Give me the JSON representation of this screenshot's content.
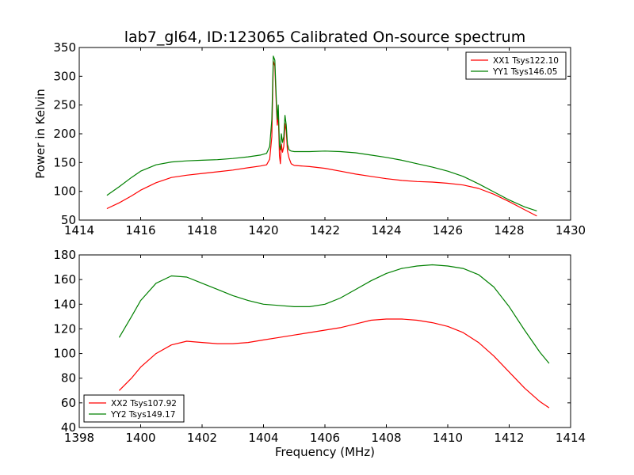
{
  "chart_data": [
    {
      "type": "line",
      "title": "lab7_gl64, ID:123065 Calibrated On-source spectrum",
      "xlabel": "",
      "ylabel": "Power in Kelvin",
      "xlim": [
        1414,
        1430
      ],
      "ylim": [
        50,
        350
      ],
      "xticks": [
        1414,
        1416,
        1418,
        1420,
        1422,
        1424,
        1426,
        1428,
        1430
      ],
      "xtick_labels": [
        "1414",
        "1416",
        "1418",
        "1420",
        "1422",
        "1424",
        "1426",
        "1428",
        "1430"
      ],
      "yticks": [
        50,
        100,
        150,
        200,
        250,
        300,
        350
      ],
      "ytick_labels": [
        "50",
        "100",
        "150",
        "200",
        "250",
        "300",
        "350"
      ],
      "grid": false,
      "legend_position": "top-right",
      "series": [
        {
          "name": "XX1 Tsys122.10",
          "color": "#ff0000",
          "x": [
            1414.9,
            1415.3,
            1415.7,
            1416.0,
            1416.5,
            1417.0,
            1417.5,
            1418.0,
            1418.5,
            1419.0,
            1419.5,
            1419.9,
            1420.1,
            1420.2,
            1420.27,
            1420.32,
            1420.37,
            1420.42,
            1420.45,
            1420.48,
            1420.52,
            1420.55,
            1420.58,
            1420.62,
            1420.66,
            1420.7,
            1420.74,
            1420.78,
            1420.83,
            1420.9,
            1421.0,
            1421.5,
            1422.0,
            1422.5,
            1423.0,
            1423.5,
            1424.0,
            1424.5,
            1425.0,
            1425.5,
            1426.0,
            1426.5,
            1427.0,
            1427.5,
            1428.0,
            1428.5,
            1428.9
          ],
          "y": [
            70,
            80,
            92,
            102,
            115,
            124,
            128,
            131,
            134,
            137,
            141,
            144,
            146,
            156,
            195,
            326,
            318,
            245,
            215,
            238,
            162,
            148,
            182,
            168,
            178,
            218,
            205,
            170,
            158,
            148,
            145,
            143,
            140,
            135,
            130,
            126,
            122,
            119,
            117,
            116,
            114,
            111,
            105,
            95,
            82,
            68,
            57
          ]
        },
        {
          "name": "YY1 Tsys146.05",
          "color": "#008000",
          "x": [
            1414.9,
            1415.3,
            1415.7,
            1416.0,
            1416.5,
            1417.0,
            1417.5,
            1418.0,
            1418.5,
            1419.0,
            1419.5,
            1419.9,
            1420.1,
            1420.2,
            1420.27,
            1420.32,
            1420.37,
            1420.42,
            1420.45,
            1420.48,
            1420.52,
            1420.55,
            1420.58,
            1420.62,
            1420.66,
            1420.7,
            1420.74,
            1420.78,
            1420.83,
            1420.9,
            1421.0,
            1421.5,
            1422.0,
            1422.5,
            1423.0,
            1423.5,
            1424.0,
            1424.5,
            1425.0,
            1425.5,
            1426.0,
            1426.5,
            1427.0,
            1427.5,
            1428.0,
            1428.5,
            1428.9
          ],
          "y": [
            93,
            108,
            124,
            135,
            146,
            151,
            153,
            154,
            155,
            157,
            160,
            163,
            166,
            178,
            225,
            335,
            328,
            255,
            225,
            250,
            180,
            172,
            200,
            185,
            195,
            232,
            215,
            182,
            172,
            170,
            169,
            169,
            170,
            169,
            167,
            163,
            159,
            154,
            148,
            142,
            135,
            126,
            113,
            99,
            85,
            73,
            66
          ]
        }
      ]
    },
    {
      "type": "line",
      "title": "",
      "xlabel": "Frequency (MHz)",
      "ylabel": "",
      "xlim": [
        1398,
        1414
      ],
      "ylim": [
        40,
        180
      ],
      "xticks": [
        1398,
        1400,
        1402,
        1404,
        1406,
        1408,
        1410,
        1412,
        1414
      ],
      "xtick_labels": [
        "1398",
        "1400",
        "1402",
        "1404",
        "1406",
        "1408",
        "1410",
        "1412",
        "1414"
      ],
      "yticks": [
        40,
        60,
        80,
        100,
        120,
        140,
        160,
        180
      ],
      "ytick_labels": [
        "40",
        "60",
        "80",
        "100",
        "120",
        "140",
        "160",
        "180"
      ],
      "grid": false,
      "legend_position": "bottom-left",
      "series": [
        {
          "name": "XX2 Tsys107.92",
          "color": "#ff0000",
          "x": [
            1399.3,
            1399.7,
            1400.0,
            1400.5,
            1401.0,
            1401.5,
            1402.0,
            1402.5,
            1403.0,
            1403.5,
            1404.0,
            1404.5,
            1405.0,
            1405.5,
            1406.0,
            1406.5,
            1407.0,
            1407.5,
            1408.0,
            1408.5,
            1409.0,
            1409.5,
            1410.0,
            1410.5,
            1411.0,
            1411.5,
            1412.0,
            1412.5,
            1413.0,
            1413.3
          ],
          "y": [
            70,
            80,
            89,
            100,
            107,
            110,
            109,
            108,
            108,
            109,
            111,
            113,
            115,
            117,
            119,
            121,
            124,
            127,
            128,
            128,
            127,
            125,
            122,
            117,
            109,
            98,
            85,
            72,
            61,
            56
          ]
        },
        {
          "name": "YY2 Tsys149.17",
          "color": "#008000",
          "x": [
            1399.3,
            1399.7,
            1400.0,
            1400.5,
            1401.0,
            1401.5,
            1402.0,
            1402.5,
            1403.0,
            1403.5,
            1404.0,
            1404.5,
            1405.0,
            1405.5,
            1406.0,
            1406.5,
            1407.0,
            1407.5,
            1408.0,
            1408.5,
            1409.0,
            1409.5,
            1410.0,
            1410.5,
            1411.0,
            1411.5,
            1412.0,
            1412.5,
            1413.0,
            1413.3
          ],
          "y": [
            113,
            130,
            143,
            157,
            163,
            162,
            157,
            152,
            147,
            143,
            140,
            139,
            138,
            138,
            140,
            145,
            152,
            159,
            165,
            169,
            171,
            172,
            171,
            169,
            164,
            154,
            138,
            119,
            101,
            92
          ]
        }
      ]
    }
  ]
}
